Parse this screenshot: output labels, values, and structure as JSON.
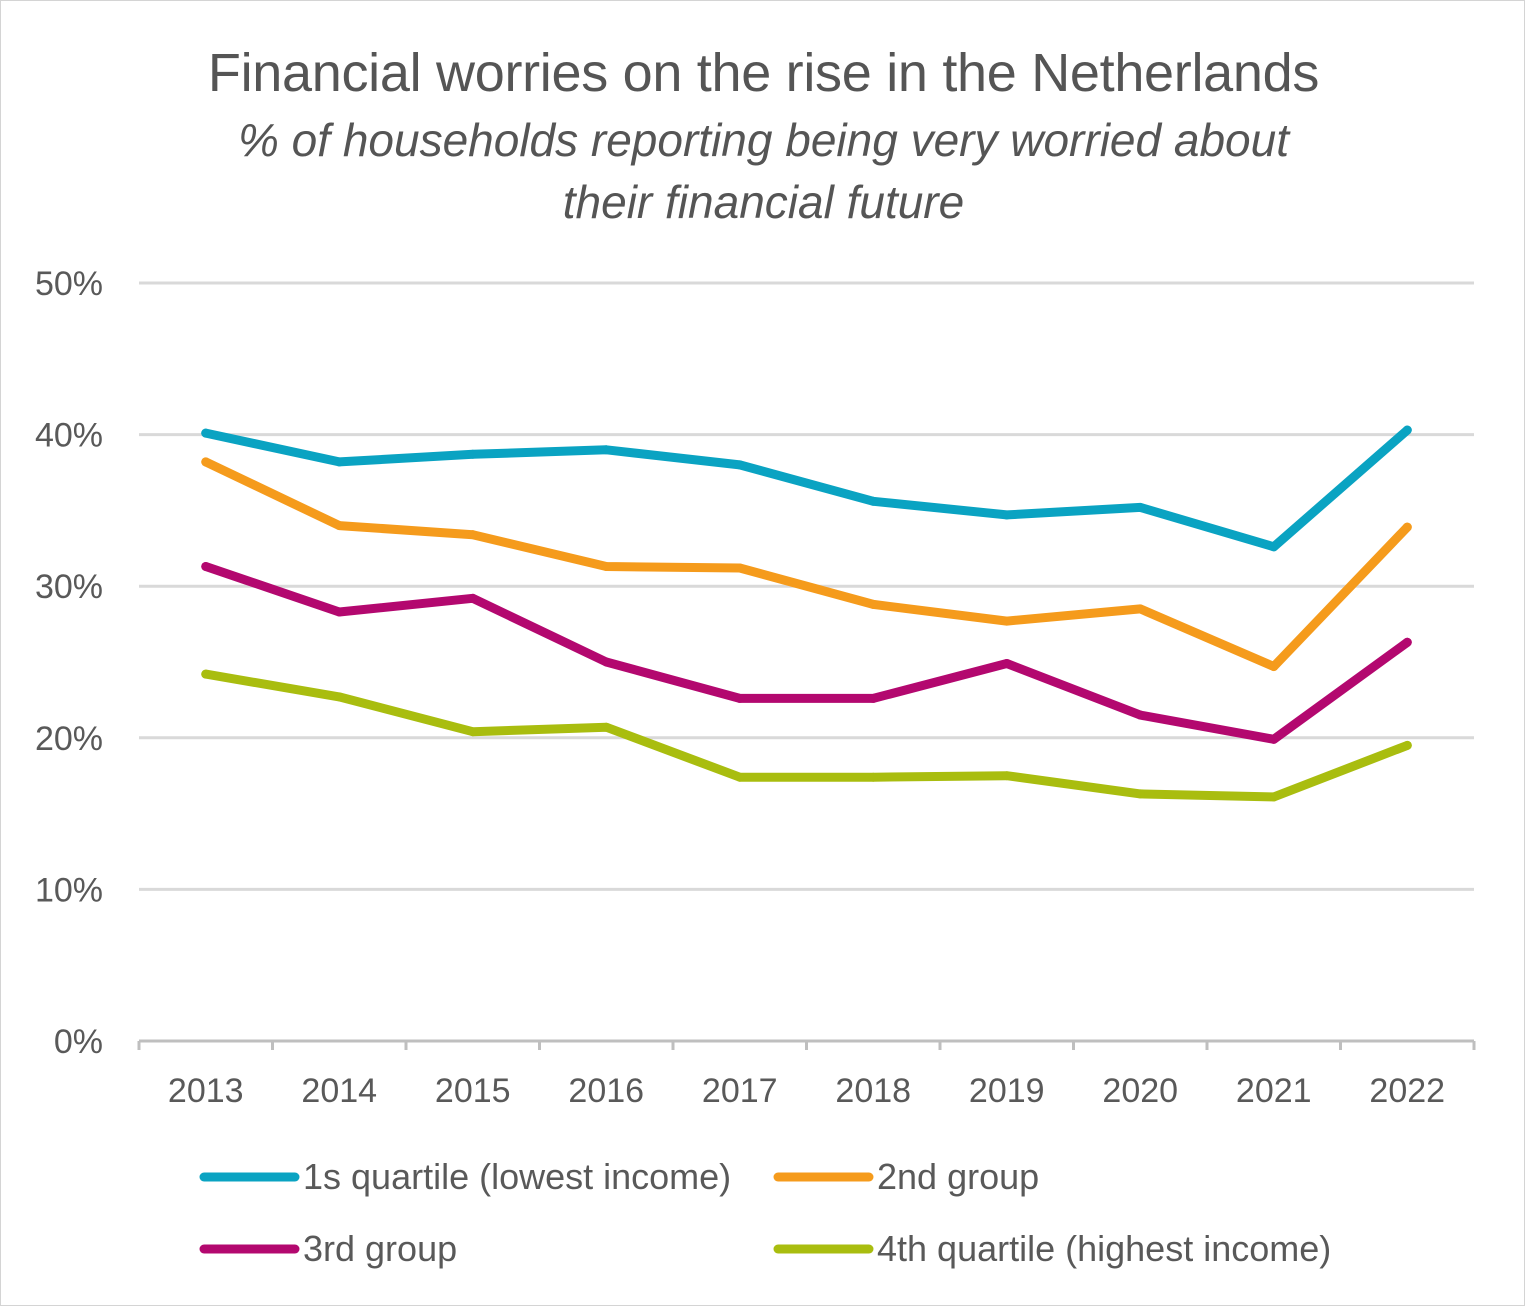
{
  "chart_data": {
    "type": "line",
    "title": "Financial worries on the rise in the Netherlands",
    "subtitle": "% of households reporting being very worried about their financial future",
    "xlabel": "",
    "ylabel": "",
    "x": [
      "2013",
      "2014",
      "2015",
      "2016",
      "2017",
      "2018",
      "2019",
      "2020",
      "2021",
      "2022"
    ],
    "ylim": [
      0,
      50
    ],
    "yticks": [
      0,
      10,
      20,
      30,
      40,
      50
    ],
    "ytick_labels": [
      "0%",
      "10%",
      "20%",
      "30%",
      "40%",
      "50%"
    ],
    "grid": true,
    "legend_position": "bottom",
    "series": [
      {
        "name": "1s quartile (lowest income)",
        "color": "#0aa3c2",
        "values": [
          40.1,
          38.2,
          38.7,
          39.0,
          38.0,
          35.6,
          34.7,
          35.2,
          32.6,
          40.3
        ]
      },
      {
        "name": "2nd group",
        "color": "#f59b1c",
        "values": [
          38.2,
          34.0,
          33.4,
          31.3,
          31.2,
          28.8,
          27.7,
          28.5,
          24.7,
          33.9
        ]
      },
      {
        "name": "3rd group",
        "color": "#b3086f",
        "values": [
          31.3,
          28.3,
          29.2,
          25.0,
          22.6,
          22.6,
          24.9,
          21.5,
          19.9,
          26.3
        ]
      },
      {
        "name": "4th quartile (highest income)",
        "color": "#a9bd0f",
        "values": [
          24.2,
          22.7,
          20.4,
          20.7,
          17.4,
          17.4,
          17.5,
          16.3,
          16.1,
          19.5
        ]
      }
    ]
  }
}
